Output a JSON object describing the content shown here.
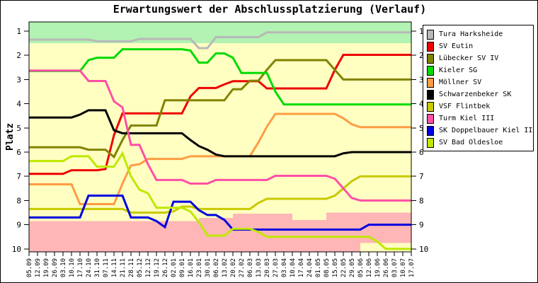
{
  "title": "Erwartungswert der Abschlussplatzierung (Verlauf)",
  "chart_data": {
    "type": "line",
    "title": "Erwartungswert der Abschlussplatzierung (Verlauf)",
    "xlabel": "",
    "ylabel": "Platz",
    "y_ticks": [
      1,
      2,
      3,
      4,
      5,
      6,
      7,
      8,
      9,
      10
    ],
    "ylim": [
      0.62,
      10.23
    ],
    "y_inverted": true,
    "grid": false,
    "legend_position": "right-outside",
    "plot_bg_color": "#FFFFC2",
    "x_tick_labels": [
      "05.09",
      "12.09",
      "19.09",
      "26.09",
      "03.10",
      "10.10",
      "17.10",
      "24.10",
      "31.10",
      "07.11",
      "14.11",
      "21.11",
      "28.11",
      "05.12",
      "12.12",
      "19.12",
      "26.12",
      "02.01",
      "09.01",
      "16.01",
      "23.01",
      "30.01",
      "06.02",
      "13.02",
      "20.02",
      "27.02",
      "06.03",
      "13.03",
      "20.03",
      "27.03",
      "03.04",
      "10.04",
      "17.04",
      "24.04",
      "01.05",
      "08.05",
      "15.05",
      "22.05",
      "29.05",
      "05.06",
      "12.06",
      "19.06",
      "26.06",
      "03.07",
      "10.07",
      "17.07"
    ],
    "zones": {
      "promotion_zone": {
        "color": "#B2F2B2",
        "top": 0.62,
        "bottom": 1.5,
        "from_idx": 0,
        "to_idx": 45
      },
      "relegation_zone": {
        "color": "#FFB6B6",
        "bottom": 10.23,
        "top_steps": [
          {
            "from_idx": 0,
            "to_idx": 20,
            "top": 8.85
          },
          {
            "from_idx": 20,
            "to_idx": 24,
            "top": 8.72
          },
          {
            "from_idx": 24,
            "to_idx": 31,
            "top": 8.55
          },
          {
            "from_idx": 31,
            "to_idx": 35,
            "top": 8.8
          },
          {
            "from_idx": 35,
            "to_idx": 45,
            "top": 8.5
          }
        ]
      },
      "bottom_safe_patch": {
        "color": "#FFFFC2",
        "from_idx": 39,
        "to_idx": 45,
        "top": 9.75,
        "bottom": 10.23
      }
    },
    "series": [
      {
        "name": "Tura Harksheide",
        "color": "#B8B8B8",
        "values": [
          1.35,
          1.35,
          1.35,
          1.35,
          1.35,
          1.35,
          1.35,
          1.35,
          1.42,
          1.42,
          1.42,
          1.42,
          1.42,
          1.32,
          1.32,
          1.32,
          1.32,
          1.32,
          1.32,
          1.32,
          1.7,
          1.7,
          1.25,
          1.25,
          1.25,
          1.25,
          1.25,
          1.25,
          1.05,
          1.05,
          1.05,
          1.05,
          1.05,
          1.05,
          1.05,
          1.05,
          1.05,
          1.05,
          1.05,
          1.05,
          1.05,
          1.05,
          1.05,
          1.05,
          1.05,
          1.05
        ]
      },
      {
        "name": "SV Eutin",
        "color": "#EE0000",
        "values": [
          6.9,
          6.9,
          6.9,
          6.9,
          6.9,
          6.75,
          6.75,
          6.75,
          6.75,
          6.7,
          5.3,
          4.4,
          4.4,
          4.4,
          4.4,
          4.4,
          4.4,
          4.4,
          4.4,
          3.7,
          3.35,
          3.35,
          3.35,
          3.2,
          3.07,
          3.07,
          3.07,
          3.07,
          3.37,
          3.37,
          3.37,
          3.37,
          3.37,
          3.37,
          3.37,
          3.37,
          2.6,
          1.98,
          1.98,
          1.98,
          1.98,
          1.98,
          1.98,
          1.98,
          1.98,
          1.98
        ]
      },
      {
        "name": "Lübecker SV IV",
        "color": "#828200",
        "values": [
          5.8,
          5.8,
          5.8,
          5.8,
          5.8,
          5.8,
          5.8,
          5.9,
          5.9,
          5.9,
          6.2,
          5.5,
          4.9,
          4.9,
          4.9,
          4.9,
          3.86,
          3.86,
          3.86,
          3.86,
          3.86,
          3.86,
          3.86,
          3.86,
          3.4,
          3.4,
          3.05,
          3.05,
          2.6,
          2.2,
          2.2,
          2.2,
          2.2,
          2.2,
          2.2,
          2.2,
          2.6,
          3.0,
          3.0,
          3.0,
          3.0,
          3.0,
          3.0,
          3.0,
          3.0,
          3.0
        ]
      },
      {
        "name": "Kieler SG",
        "color": "#00DB00",
        "values": [
          2.65,
          2.65,
          2.65,
          2.65,
          2.65,
          2.65,
          2.65,
          2.2,
          2.1,
          2.1,
          2.1,
          1.75,
          1.75,
          1.75,
          1.75,
          1.75,
          1.75,
          1.75,
          1.75,
          1.8,
          2.3,
          2.3,
          1.92,
          1.92,
          2.1,
          2.73,
          2.73,
          2.73,
          2.73,
          3.5,
          4.03,
          4.03,
          4.03,
          4.03,
          4.03,
          4.03,
          4.03,
          4.03,
          4.03,
          4.03,
          4.03,
          4.03,
          4.03,
          4.03,
          4.03,
          4.03
        ]
      },
      {
        "name": "Möllner SV",
        "color": "#FF9C42",
        "values": [
          7.33,
          7.33,
          7.33,
          7.33,
          7.33,
          7.33,
          8.15,
          8.15,
          8.15,
          8.15,
          8.15,
          7.3,
          6.55,
          6.5,
          6.28,
          6.28,
          6.28,
          6.28,
          6.28,
          6.17,
          6.17,
          6.17,
          6.17,
          6.17,
          6.17,
          6.17,
          6.17,
          5.6,
          4.95,
          4.42,
          4.42,
          4.42,
          4.42,
          4.42,
          4.42,
          4.42,
          4.42,
          4.6,
          4.85,
          4.97,
          4.97,
          4.97,
          4.97,
          4.97,
          4.97,
          4.97
        ]
      },
      {
        "name": "Schwarzenbeker SK",
        "color": "#000000",
        "values": [
          4.57,
          4.57,
          4.57,
          4.57,
          4.57,
          4.57,
          4.45,
          4.27,
          4.27,
          4.27,
          5.1,
          5.22,
          5.22,
          5.22,
          5.22,
          5.22,
          5.22,
          5.22,
          5.22,
          5.5,
          5.75,
          5.9,
          6.1,
          6.17,
          6.17,
          6.17,
          6.17,
          6.17,
          6.17,
          6.17,
          6.17,
          6.17,
          6.17,
          6.17,
          6.17,
          6.17,
          6.17,
          6.05,
          6.0,
          6.0,
          6.0,
          6.0,
          6.0,
          6.0,
          6.0,
          6.0
        ]
      },
      {
        "name": "VSF Flintbek",
        "color": "#C9C900",
        "values": [
          8.35,
          8.35,
          8.35,
          8.35,
          8.35,
          8.35,
          8.35,
          8.35,
          8.35,
          8.35,
          8.35,
          8.35,
          8.5,
          8.5,
          8.5,
          8.5,
          8.5,
          8.45,
          8.25,
          8.25,
          8.35,
          8.35,
          8.35,
          8.35,
          8.35,
          8.35,
          8.35,
          8.1,
          7.93,
          7.93,
          7.93,
          7.93,
          7.93,
          7.93,
          7.93,
          7.93,
          7.8,
          7.5,
          7.2,
          7.0,
          7.0,
          7.0,
          7.0,
          7.0,
          7.0,
          7.0
        ]
      },
      {
        "name": "Turm Kiel III",
        "color": "#FF4FA6",
        "values": [
          2.63,
          2.63,
          2.63,
          2.63,
          2.63,
          2.63,
          2.63,
          3.06,
          3.06,
          3.06,
          3.9,
          4.15,
          5.7,
          5.7,
          6.5,
          7.15,
          7.15,
          7.15,
          7.15,
          7.3,
          7.3,
          7.3,
          7.15,
          7.15,
          7.15,
          7.15,
          7.15,
          7.15,
          7.15,
          6.98,
          6.98,
          6.98,
          6.98,
          6.98,
          6.98,
          6.98,
          7.1,
          7.5,
          7.9,
          8.0,
          8.0,
          8.0,
          8.0,
          8.0,
          8.0,
          8.0
        ]
      },
      {
        "name": "SK Doppelbauer Kiel II",
        "color": "#0000E1",
        "values": [
          8.7,
          8.7,
          8.7,
          8.7,
          8.7,
          8.7,
          8.7,
          7.8,
          7.8,
          7.8,
          7.8,
          7.8,
          8.7,
          8.7,
          8.7,
          8.85,
          9.1,
          8.05,
          8.05,
          8.05,
          8.4,
          8.6,
          8.6,
          8.8,
          9.2,
          9.2,
          9.2,
          9.2,
          9.2,
          9.2,
          9.2,
          9.2,
          9.2,
          9.2,
          9.2,
          9.2,
          9.2,
          9.2,
          9.2,
          9.2,
          9.0,
          9.0,
          9.0,
          9.0,
          9.0,
          9.0
        ]
      },
      {
        "name": "SV Bad Oldesloe",
        "color": "#BFE800",
        "values": [
          6.37,
          6.37,
          6.37,
          6.37,
          6.37,
          6.17,
          6.17,
          6.17,
          6.6,
          6.6,
          6.6,
          6.05,
          7.0,
          7.55,
          7.7,
          8.3,
          8.3,
          8.3,
          8.3,
          8.45,
          8.9,
          9.45,
          9.45,
          9.45,
          9.17,
          9.17,
          9.17,
          9.3,
          9.5,
          9.5,
          9.5,
          9.5,
          9.5,
          9.5,
          9.5,
          9.5,
          9.5,
          9.5,
          9.5,
          9.5,
          9.5,
          9.7,
          10.0,
          10.0,
          10.0,
          10.0
        ]
      }
    ]
  }
}
